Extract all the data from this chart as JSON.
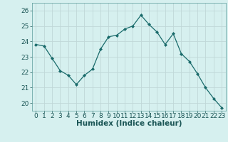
{
  "x": [
    0,
    1,
    2,
    3,
    4,
    5,
    6,
    7,
    8,
    9,
    10,
    11,
    12,
    13,
    14,
    15,
    16,
    17,
    18,
    19,
    20,
    21,
    22,
    23
  ],
  "y": [
    23.8,
    23.7,
    22.9,
    22.1,
    21.8,
    21.2,
    21.8,
    22.2,
    23.5,
    24.3,
    24.4,
    24.8,
    25.0,
    25.7,
    25.1,
    24.6,
    23.8,
    24.5,
    23.2,
    22.7,
    21.9,
    21.0,
    20.3,
    19.7
  ],
  "line_color": "#1a6b6b",
  "marker": "D",
  "marker_size": 2,
  "bg_color": "#d6f0ef",
  "grid_color": "#c0d8d8",
  "xlabel": "Humidex (Indice chaleur)",
  "ylim": [
    19.5,
    26.5
  ],
  "yticks": [
    20,
    21,
    22,
    23,
    24,
    25,
    26
  ],
  "xticks": [
    0,
    1,
    2,
    3,
    4,
    5,
    6,
    7,
    8,
    9,
    10,
    11,
    12,
    13,
    14,
    15,
    16,
    17,
    18,
    19,
    20,
    21,
    22,
    23
  ],
  "tick_fontsize": 6.5,
  "xlabel_fontsize": 7.5
}
